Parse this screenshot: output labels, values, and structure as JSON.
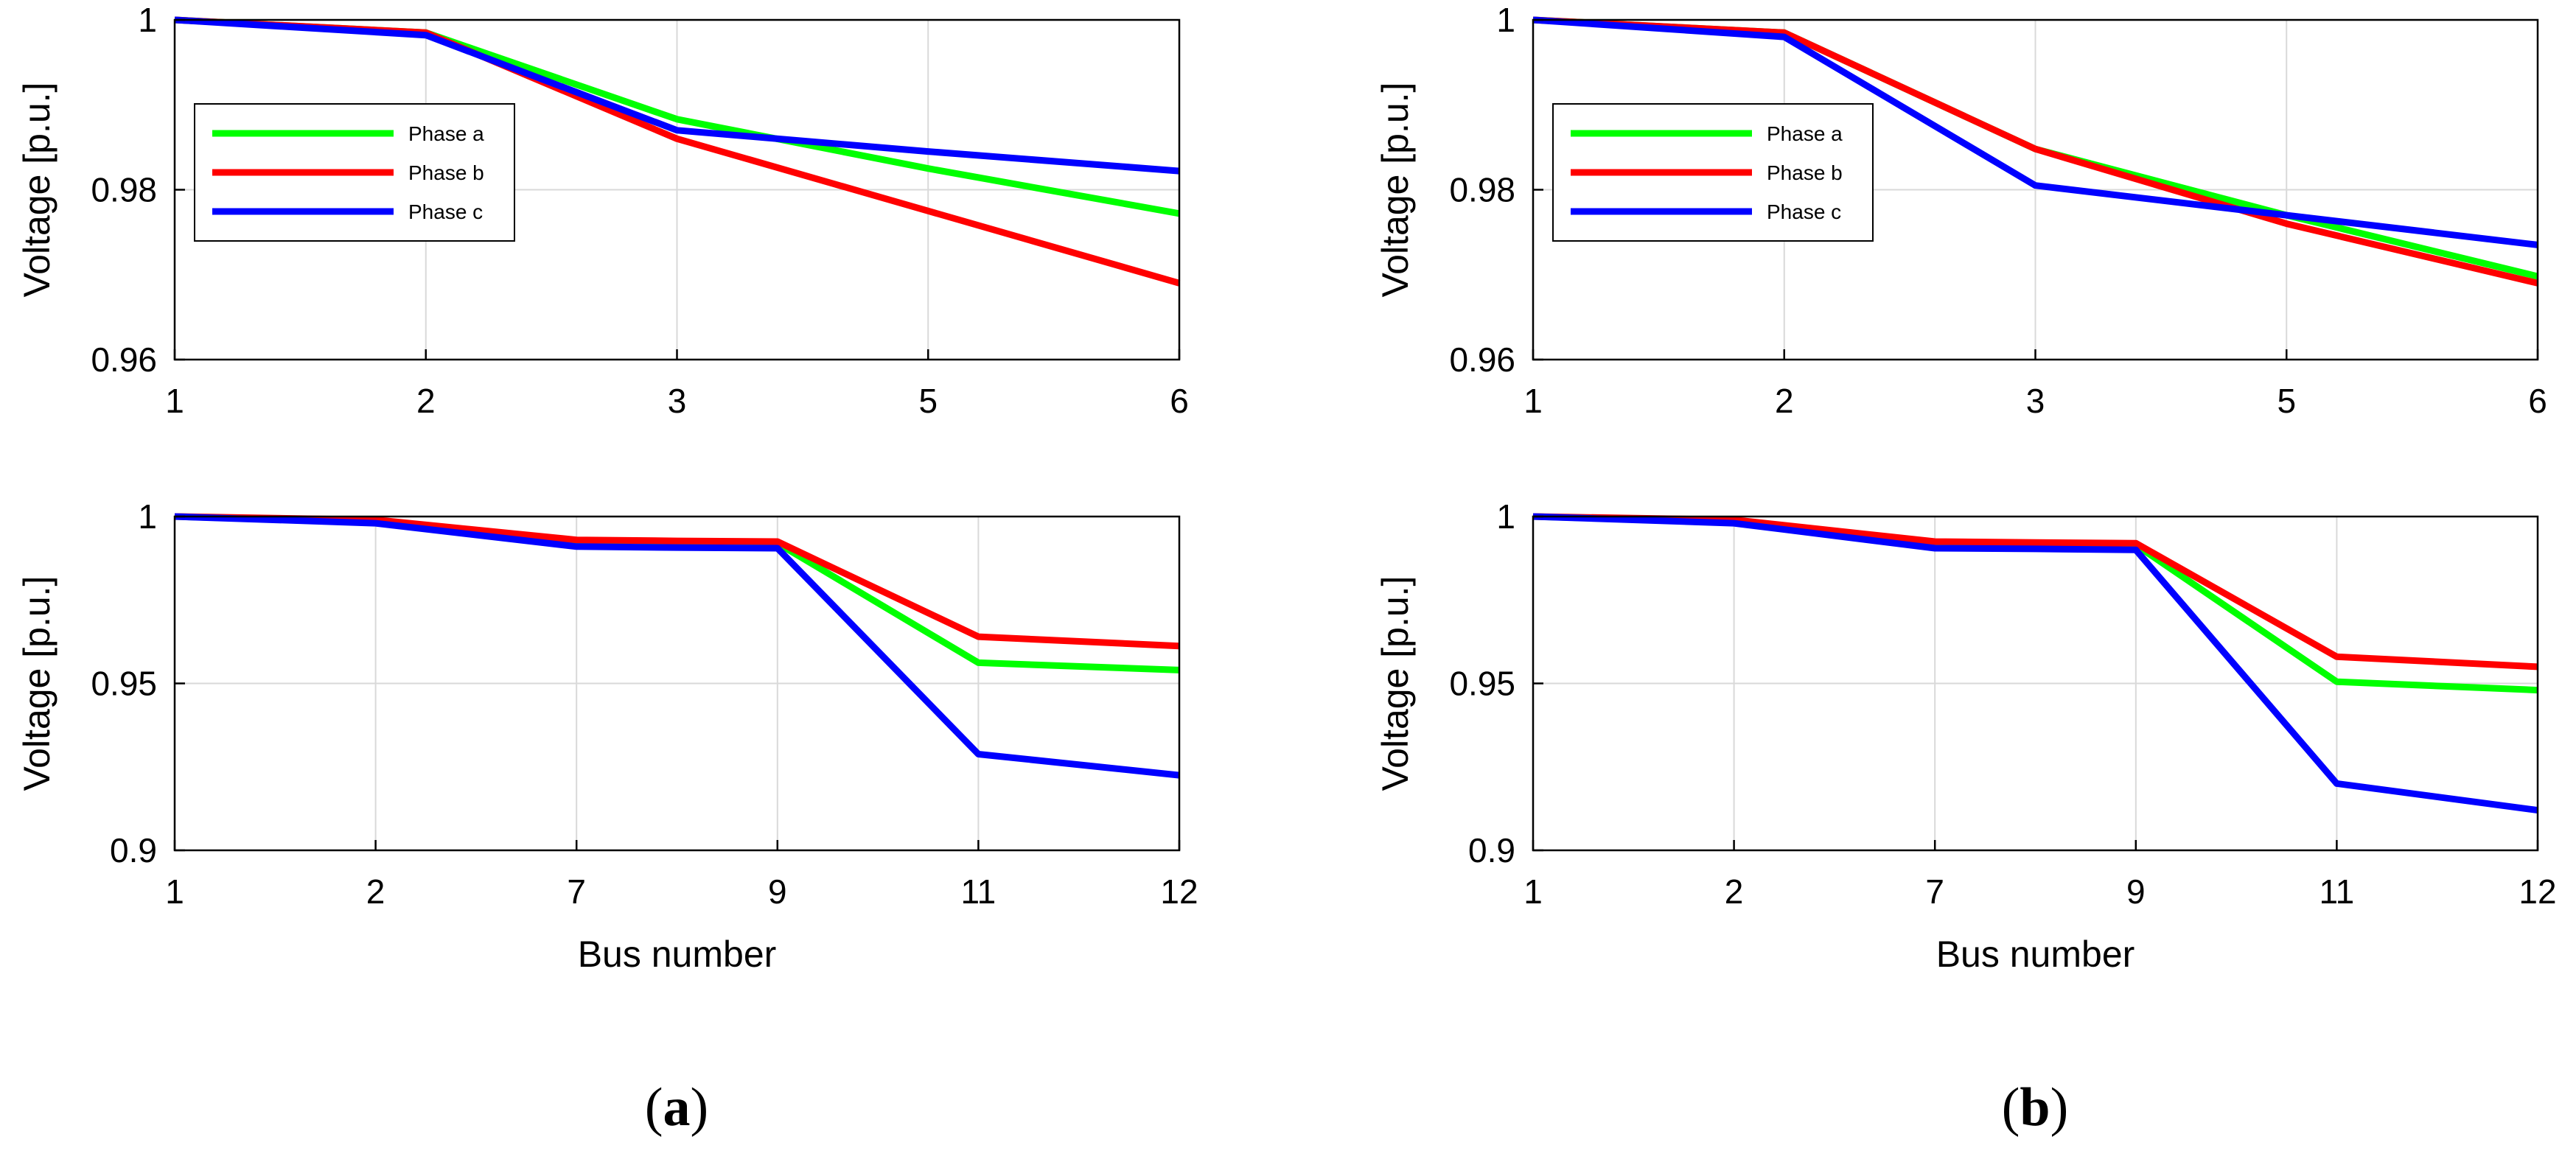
{
  "chart_data": [
    {
      "type": "line",
      "panel": "a",
      "position": "top",
      "categories": [
        "1",
        "2",
        "3",
        "5",
        "6"
      ],
      "ylabel": "Voltage [p.u.]",
      "xlabel": "",
      "ylim": [
        0.96,
        1.0
      ],
      "yticks": [
        0.96,
        0.98,
        1.0
      ],
      "ytick_labels": [
        "0.96",
        "0.98",
        "1"
      ],
      "grid": true,
      "legend": "upper-left",
      "series": [
        {
          "name": "Phase a",
          "color": "#00ff00",
          "values": [
            1.0,
            0.9985,
            0.9883,
            0.9825,
            0.9772
          ]
        },
        {
          "name": "Phase b",
          "color": "#ff0000",
          "values": [
            1.0,
            0.9985,
            0.986,
            0.9775,
            0.969
          ]
        },
        {
          "name": "Phase c",
          "color": "#0000ff",
          "values": [
            1.0,
            0.9982,
            0.987,
            0.9845,
            0.9822
          ]
        }
      ]
    },
    {
      "type": "line",
      "panel": "a",
      "position": "bottom",
      "categories": [
        "1",
        "2",
        "7",
        "9",
        "11",
        "12"
      ],
      "ylabel": "Voltage [p.u.]",
      "xlabel": "Bus number",
      "ylim": [
        0.9,
        1.0
      ],
      "yticks": [
        0.9,
        0.95,
        1.0
      ],
      "ytick_labels": [
        "0.9",
        "0.95",
        "1"
      ],
      "grid": true,
      "series": [
        {
          "name": "Phase a",
          "color": "#00ff00",
          "x": [
            0,
            1,
            2,
            2.5,
            3,
            4,
            5
          ],
          "values": [
            1.0,
            0.9983,
            0.9925,
            0.9922,
            0.992,
            0.9562,
            0.954
          ]
        },
        {
          "name": "Phase b",
          "color": "#ff0000",
          "x": [
            0,
            1,
            2,
            2.5,
            3,
            4,
            5
          ],
          "values": [
            1.0,
            0.999,
            0.993,
            0.9927,
            0.9925,
            0.964,
            0.9612
          ]
        },
        {
          "name": "Phase c",
          "color": "#0000ff",
          "x": [
            0,
            1,
            2,
            2.5,
            3,
            4,
            5
          ],
          "values": [
            1.0,
            0.998,
            0.991,
            0.9907,
            0.9905,
            0.9288,
            0.9225
          ]
        }
      ]
    },
    {
      "type": "line",
      "panel": "b",
      "position": "top",
      "categories": [
        "1",
        "2",
        "3",
        "5",
        "6"
      ],
      "ylabel": "Voltage [p.u.]",
      "xlabel": "",
      "ylim": [
        0.96,
        1.0
      ],
      "yticks": [
        0.96,
        0.98,
        1.0
      ],
      "ytick_labels": [
        "0.96",
        "0.98",
        "1"
      ],
      "grid": true,
      "legend": "upper-left",
      "series": [
        {
          "name": "Phase a",
          "color": "#00ff00",
          "values": [
            1.0,
            0.9985,
            0.9848,
            0.977,
            0.9698
          ]
        },
        {
          "name": "Phase b",
          "color": "#ff0000",
          "values": [
            1.0,
            0.9985,
            0.9848,
            0.976,
            0.969
          ]
        },
        {
          "name": "Phase c",
          "color": "#0000ff",
          "values": [
            1.0,
            0.998,
            0.9805,
            0.977,
            0.9735
          ]
        }
      ]
    },
    {
      "type": "line",
      "panel": "b",
      "position": "bottom",
      "categories": [
        "1",
        "2",
        "7",
        "9",
        "11",
        "12"
      ],
      "ylabel": "Voltage [p.u.]",
      "xlabel": "Bus number",
      "ylim": [
        0.9,
        1.0
      ],
      "yticks": [
        0.9,
        0.95,
        1.0
      ],
      "ytick_labels": [
        "0.9",
        "0.95",
        "1"
      ],
      "grid": true,
      "series": [
        {
          "name": "Phase a",
          "color": "#00ff00",
          "x": [
            0,
            1,
            2,
            2.5,
            3,
            4,
            5
          ],
          "values": [
            1.0,
            0.9983,
            0.992,
            0.9917,
            0.9915,
            0.9505,
            0.948
          ]
        },
        {
          "name": "Phase b",
          "color": "#ff0000",
          "x": [
            0,
            1,
            2,
            2.5,
            3,
            4,
            5
          ],
          "values": [
            1.0,
            0.999,
            0.9925,
            0.9922,
            0.992,
            0.958,
            0.955
          ]
        },
        {
          "name": "Phase c",
          "color": "#0000ff",
          "x": [
            0,
            1,
            2,
            2.5,
            3,
            4,
            5
          ],
          "values": [
            1.0,
            0.998,
            0.9905,
            0.9903,
            0.99,
            0.92,
            0.912
          ]
        }
      ]
    }
  ],
  "panel_labels": [
    "a",
    "b"
  ],
  "colors": {
    "axis": "#000000",
    "grid": "#d9d9d9"
  }
}
